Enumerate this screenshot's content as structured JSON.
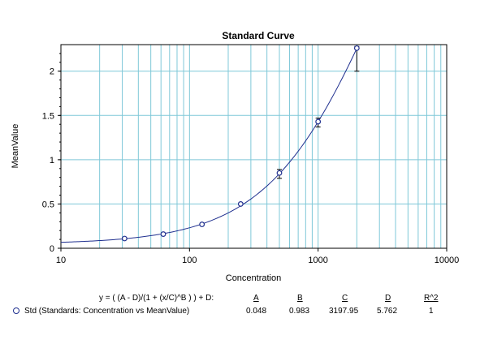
{
  "chart_data": {
    "type": "scatter",
    "title": "Standard Curve",
    "xlabel": "Concentration",
    "ylabel": "MeanValue",
    "x_scale": "log",
    "xlim": [
      10,
      10000
    ],
    "ylim": [
      0,
      2.3
    ],
    "x_ticks": [
      "10",
      "100",
      "1000",
      "10000"
    ],
    "y_ticks": [
      "0",
      "0.5",
      "1",
      "1.5",
      "2"
    ],
    "grid": true,
    "series": [
      {
        "name": "Std (Standards: Concentration vs MeanValue)",
        "x": [
          31.25,
          62.5,
          125,
          250,
          500,
          1000,
          2000
        ],
        "y": [
          0.11,
          0.16,
          0.27,
          0.5,
          0.85,
          1.43,
          2.26
        ],
        "err_low": [
          0.01,
          0.01,
          0.01,
          0.01,
          0.06,
          0.06,
          0.26
        ],
        "err_high": [
          0.01,
          0.01,
          0.01,
          0.01,
          0.04,
          0.04,
          0.02
        ]
      }
    ],
    "fit": {
      "equation": "y = ( (A - D)/(1 + (x/C)^B ) ) + D:",
      "headers": [
        "A",
        "B",
        "C",
        "D",
        "R^2"
      ],
      "values": [
        "0.048",
        "0.983",
        "3197.95",
        "5.762",
        "1"
      ],
      "params": {
        "A": 0.048,
        "B": 0.983,
        "C": 3197.95,
        "D": 5.762
      }
    },
    "colors": {
      "grid": "#7fc8d8",
      "curve": "#1f2f8f",
      "marker": "#1f2f8f"
    }
  }
}
